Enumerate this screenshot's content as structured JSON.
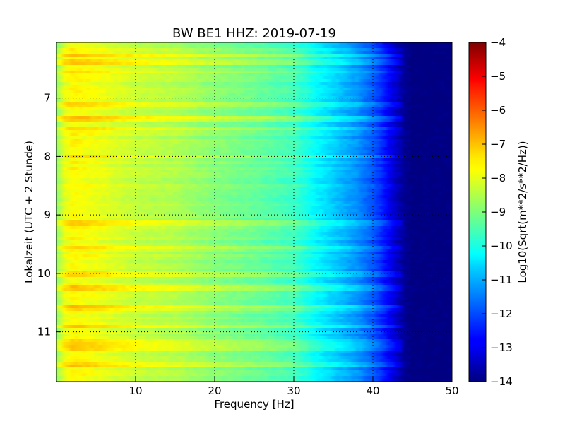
{
  "chart_data": {
    "type": "heatmap",
    "title": "BW BE1 HHZ: 2019-07-19",
    "xlabel": "Frequency [Hz]",
    "ylabel": "Lokalzeit (UTC + 2 Stunde)",
    "xlim": [
      0,
      50
    ],
    "ylim": [
      6.05,
      11.85
    ],
    "x_ticks": [
      10,
      20,
      30,
      40,
      50
    ],
    "y_ticks": [
      7,
      8,
      9,
      10,
      11
    ],
    "grid": true,
    "colormap": "jet",
    "colorbar": {
      "label": "Log10(Sqrt(m**2/s**2/Hz))",
      "range": [
        -14,
        -4
      ],
      "ticks": [
        -4,
        -5,
        -6,
        -7,
        -8,
        -9,
        -10,
        -11,
        -12,
        -13,
        -14
      ]
    },
    "spectrum_profile": {
      "frequency_hz": [
        0,
        1,
        2,
        5,
        10,
        15,
        20,
        25,
        30,
        33,
        36,
        38,
        40,
        41,
        42,
        43,
        44,
        45,
        46,
        50
      ],
      "log10_amplitude": [
        -8.8,
        -8.0,
        -7.7,
        -7.9,
        -8.3,
        -8.5,
        -8.9,
        -9.2,
        -9.6,
        -10.3,
        -10.9,
        -11.3,
        -11.9,
        -12.3,
        -12.8,
        -13.3,
        -13.8,
        -14.0,
        -14.0,
        -14.0
      ]
    },
    "bright_hours": [
      6.27,
      6.4,
      6.55,
      7.1,
      7.35,
      7.52,
      8.0,
      9.15,
      9.55,
      10.02,
      10.25,
      10.58,
      10.9,
      11.18,
      11.28,
      11.55
    ]
  }
}
